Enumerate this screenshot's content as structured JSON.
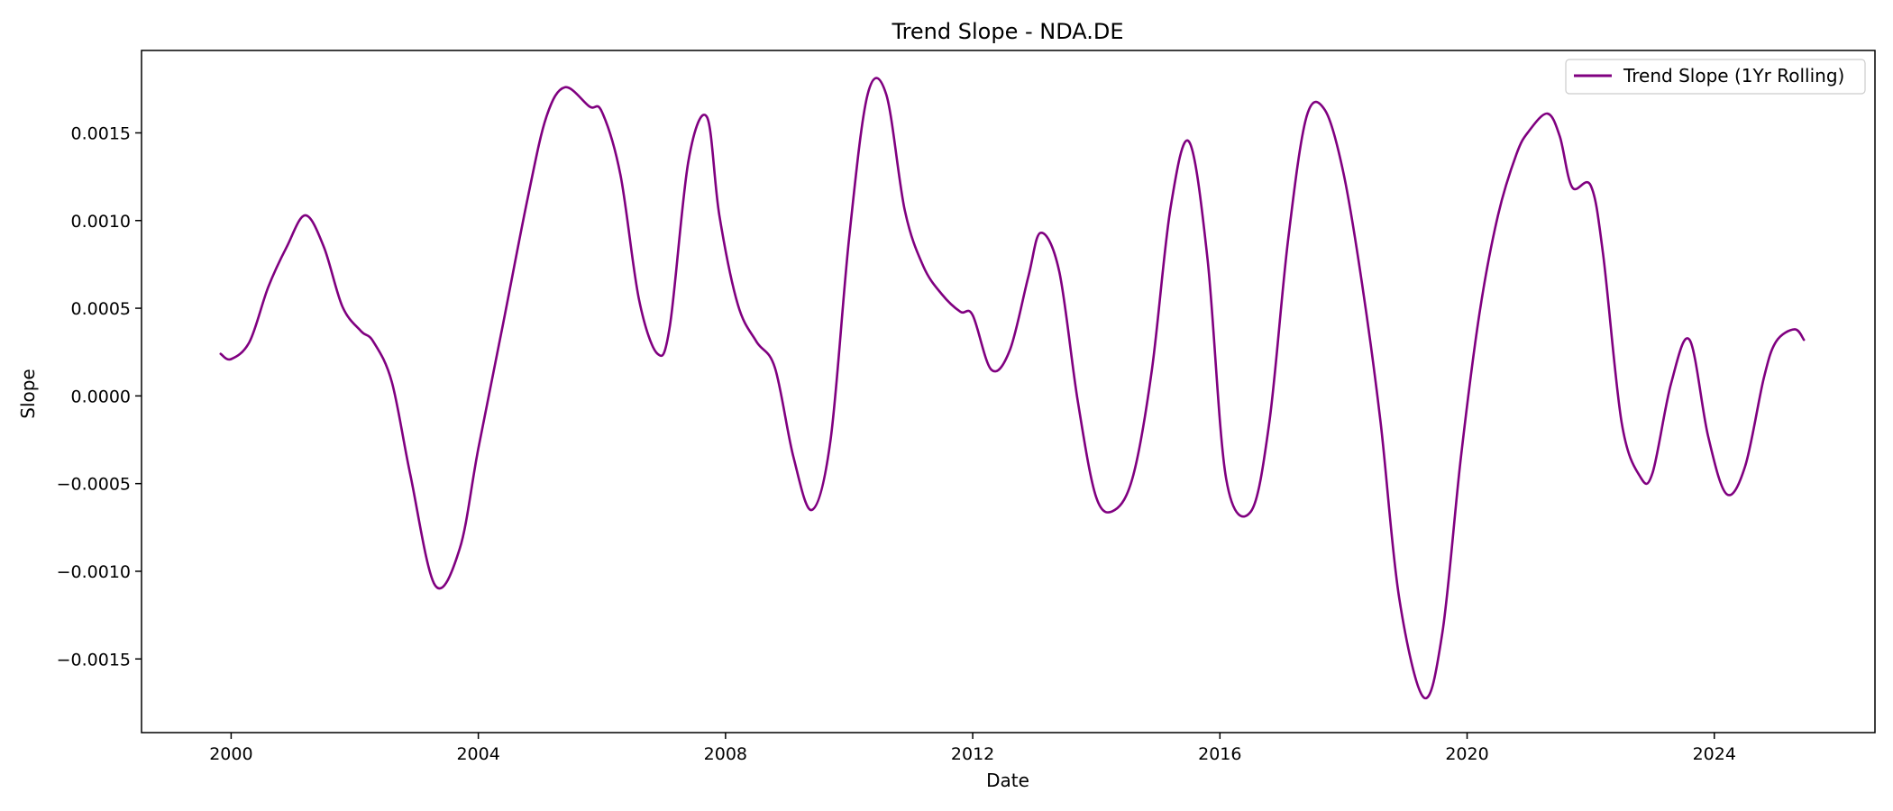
{
  "chart_data": {
    "type": "line",
    "title": "Trend Slope - NDA.DE",
    "xlabel": "Date",
    "ylabel": "Slope",
    "xlim": [
      1998.55,
      2026.6
    ],
    "ylim": [
      -0.00192,
      0.00197
    ],
    "x_ticks": [
      2000,
      2004,
      2008,
      2012,
      2016,
      2020,
      2024
    ],
    "x_tick_labels": [
      "2000",
      "2004",
      "2008",
      "2012",
      "2016",
      "2020",
      "2024"
    ],
    "y_ticks": [
      -0.0015,
      -0.001,
      -0.0005,
      0.0,
      0.0005,
      0.001,
      0.0015
    ],
    "y_tick_labels": [
      "−0.0015",
      "−0.0010",
      "−0.0005",
      "0.0000",
      "0.0005",
      "0.0010",
      "0.0015"
    ],
    "grid": false,
    "legend_position": "top-right",
    "series": [
      {
        "name": "Trend Slope (1Yr Rolling)",
        "color": "#800080",
        "x": [
          1999.83,
          2000.0,
          2000.3,
          2000.6,
          2000.9,
          2001.2,
          2001.5,
          2001.8,
          2002.1,
          2002.3,
          2002.6,
          2002.9,
          2003.3,
          2003.7,
          2004.0,
          2004.4,
          2004.8,
          2005.1,
          2005.4,
          2005.8,
          2006.0,
          2006.3,
          2006.6,
          2006.9,
          2007.1,
          2007.4,
          2007.7,
          2007.9,
          2008.2,
          2008.5,
          2008.8,
          2009.1,
          2009.4,
          2009.7,
          2010.0,
          2010.3,
          2010.6,
          2010.9,
          2011.2,
          2011.5,
          2011.8,
          2012.0,
          2012.3,
          2012.6,
          2012.9,
          2013.1,
          2013.4,
          2013.7,
          2014.0,
          2014.3,
          2014.6,
          2014.9,
          2015.2,
          2015.5,
          2015.8,
          2016.1,
          2016.5,
          2016.8,
          2017.1,
          2017.4,
          2017.7,
          2018.0,
          2018.3,
          2018.6,
          2018.9,
          2019.3,
          2019.6,
          2019.9,
          2020.2,
          2020.5,
          2020.8,
          2021.0,
          2021.3,
          2021.5,
          2021.7,
          2022.0,
          2022.2,
          2022.5,
          2022.8,
          2023.0,
          2023.3,
          2023.6,
          2023.9,
          2024.2,
          2024.5,
          2024.8,
          2025.0,
          2025.3,
          2025.45
        ],
        "y": [
          0.00024,
          0.00021,
          0.00031,
          0.00062,
          0.00085,
          0.00103,
          0.00085,
          0.00051,
          0.00037,
          0.00031,
          8e-05,
          -0.00045,
          -0.00108,
          -0.00087,
          -0.0003,
          0.00041,
          0.00113,
          0.00159,
          0.00176,
          0.00165,
          0.00162,
          0.00126,
          0.00055,
          0.00024,
          0.0004,
          0.00134,
          0.00159,
          0.00103,
          0.00052,
          0.00031,
          0.00016,
          -0.00035,
          -0.00065,
          -0.00025,
          0.0009,
          0.00172,
          0.00172,
          0.00106,
          0.00074,
          0.00058,
          0.00048,
          0.00046,
          0.00015,
          0.00026,
          0.00068,
          0.00093,
          0.00071,
          -3e-05,
          -0.00058,
          -0.00065,
          -0.00045,
          0.00015,
          0.00107,
          0.00145,
          0.00078,
          -0.00047,
          -0.00066,
          -0.00015,
          0.00088,
          0.00159,
          0.00163,
          0.00127,
          0.00064,
          -0.00015,
          -0.00115,
          -0.00172,
          -0.00135,
          -0.00035,
          0.00047,
          0.00103,
          0.00138,
          0.00151,
          0.00161,
          0.00148,
          0.00119,
          0.0012,
          0.00081,
          -0.00015,
          -0.00046,
          -0.00044,
          7e-05,
          0.00032,
          -0.00023,
          -0.00056,
          -0.0004,
          0.0001,
          0.00031,
          0.00038,
          0.00032
        ]
      }
    ]
  }
}
